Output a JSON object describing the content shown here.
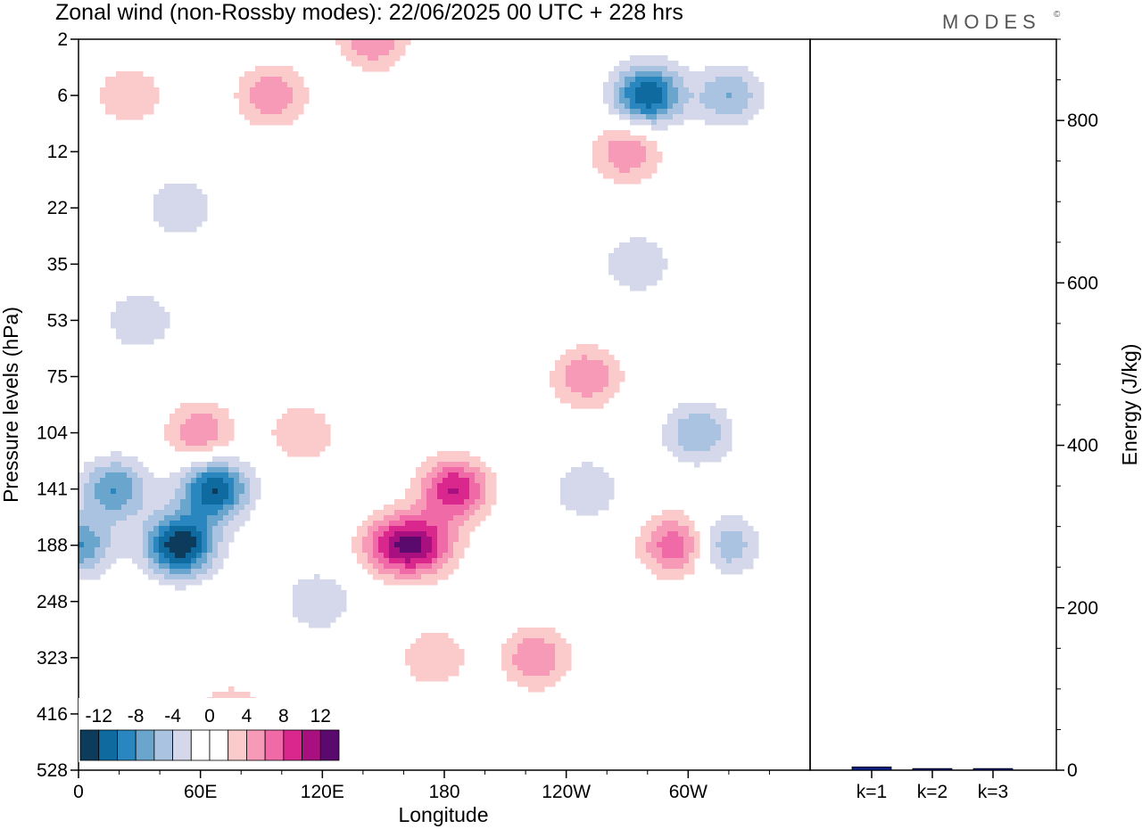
{
  "header": {
    "title": "Zonal wind (non-Rossby modes):  22/06/2025  00 UTC  + 228 hrs",
    "brand": "MODES",
    "brand_mark": "©"
  },
  "colors": {
    "palette": [
      "#0c3b5c",
      "#0f6aa0",
      "#2a86bf",
      "#6aa5cd",
      "#a9c3e0",
      "#d4d8ea",
      "#ffffff",
      "#ffffff",
      "#fbcaca",
      "#f79ab7",
      "#ef6aa6",
      "#d9278e",
      "#a8107f",
      "#5a0a6d"
    ],
    "bar_fill": "#0b1e85"
  },
  "chart_data": [
    {
      "type": "heatmap",
      "title": "Zonal wind (non-Rossby modes):  22/06/2025  00 UTC  + 228 hrs",
      "xlabel": "Longitude",
      "ylabel": "Pressure levels (hPa)",
      "x_ticks": [
        "0",
        "60E",
        "120E",
        "180",
        "120W",
        "60W"
      ],
      "x_tick_values": [
        0,
        60,
        120,
        180,
        240,
        300
      ],
      "xlim": [
        0,
        360
      ],
      "y_ticks": [
        "2",
        "6",
        "12",
        "22",
        "35",
        "53",
        "75",
        "104",
        "141",
        "188",
        "248",
        "323",
        "416",
        "528"
      ],
      "y_scale": "model levels (irregular)",
      "colorbar": {
        "labels": [
          "-12",
          "-8",
          "-4",
          "0",
          "4",
          "8",
          "12"
        ],
        "levels": [
          -14,
          -12,
          -10,
          -8,
          -6,
          -4,
          -2,
          0,
          2,
          4,
          6,
          8,
          10,
          12,
          14
        ],
        "placement": "bottom-left"
      },
      "features": [
        {
          "lon": 50,
          "level": "188",
          "value": -14
        },
        {
          "lon": 67,
          "level": "141",
          "value": -12
        },
        {
          "lon": 18,
          "level": "141",
          "value": -8
        },
        {
          "lon": 0,
          "level": "188",
          "value": -8
        },
        {
          "lon": 280,
          "level": "6",
          "value": -12
        },
        {
          "lon": 320,
          "level": "6",
          "value": -6
        },
        {
          "lon": 318,
          "level": "188",
          "value": -6
        },
        {
          "lon": 305,
          "level": "104",
          "value": -6
        },
        {
          "lon": 250,
          "level": "141",
          "value": -4
        },
        {
          "lon": 185,
          "level": "141",
          "value": 10
        },
        {
          "lon": 155,
          "level": "188",
          "value": 8
        },
        {
          "lon": 170,
          "level": "188",
          "value": 8
        },
        {
          "lon": 225,
          "level": "323",
          "value": 6
        },
        {
          "lon": 175,
          "level": "323",
          "value": 4
        },
        {
          "lon": 294,
          "level": "188",
          "value": 8
        },
        {
          "lon": 250,
          "level": "75",
          "value": 6
        },
        {
          "lon": 60,
          "level": "104",
          "value": 6
        },
        {
          "lon": 110,
          "level": "104",
          "value": 4
        },
        {
          "lon": 270,
          "level": "12",
          "value": 6
        },
        {
          "lon": 145,
          "level": "2",
          "value": 6
        },
        {
          "lon": 95,
          "level": "6",
          "value": 6
        },
        {
          "lon": 25,
          "level": "6",
          "value": 4
        },
        {
          "lon": 50,
          "level": "22",
          "value": -4
        },
        {
          "lon": 30,
          "level": "53",
          "value": -4
        },
        {
          "lon": 275,
          "level": "35",
          "value": -4
        },
        {
          "lon": 75,
          "level": "416",
          "value": 4
        },
        {
          "lon": 118,
          "level": "248",
          "value": -4
        }
      ]
    },
    {
      "type": "bar",
      "ylabel": "Energy (J/kg)",
      "categories": [
        "k=1",
        "k=2",
        "k=3"
      ],
      "values": [
        4,
        2,
        2
      ],
      "ylim": [
        0,
        900
      ],
      "y_ticks": [
        "0",
        "200",
        "400",
        "600",
        "800"
      ],
      "y_tick_values": [
        0,
        200,
        400,
        600,
        800
      ]
    }
  ]
}
